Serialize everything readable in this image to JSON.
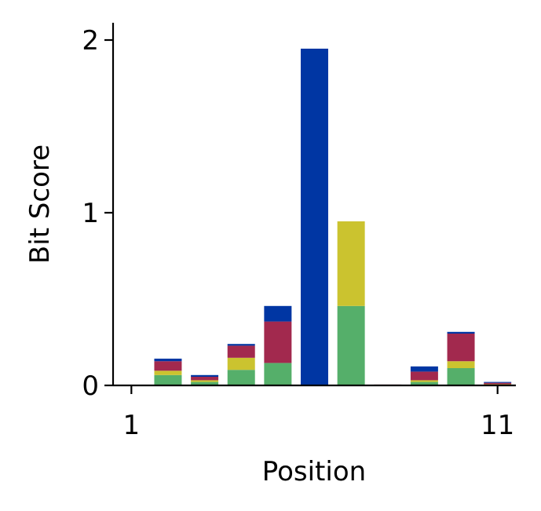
{
  "chart_data": {
    "type": "bar",
    "stacked": true,
    "xlabel": "Position",
    "ylabel": "Bit Score",
    "x": [
      1,
      2,
      3,
      4,
      5,
      6,
      7,
      8,
      9,
      10,
      11
    ],
    "xticks": [
      1,
      11
    ],
    "yticks": [
      0,
      1,
      2
    ],
    "xlim": [
      0.5,
      11.5
    ],
    "ylim": [
      0,
      2.1
    ],
    "grid": false,
    "series": [
      {
        "color": "#55AF6A",
        "values": [
          0,
          0.06,
          0.02,
          0.09,
          0.13,
          0,
          0.46,
          0,
          0.02,
          0.1,
          0.005
        ]
      },
      {
        "color": "#CBC32F",
        "values": [
          0,
          0.025,
          0.01,
          0.07,
          0,
          0,
          0.49,
          0,
          0.01,
          0.04,
          0.002
        ]
      },
      {
        "color": "#A2294E",
        "values": [
          0,
          0.055,
          0.02,
          0.07,
          0.24,
          0,
          0,
          0.005,
          0.05,
          0.16,
          0.008
        ]
      },
      {
        "color": "#0036A3",
        "values": [
          0,
          0.015,
          0.01,
          0.01,
          0.09,
          1.95,
          0,
          0,
          0.03,
          0.01,
          0.005
        ]
      }
    ]
  }
}
